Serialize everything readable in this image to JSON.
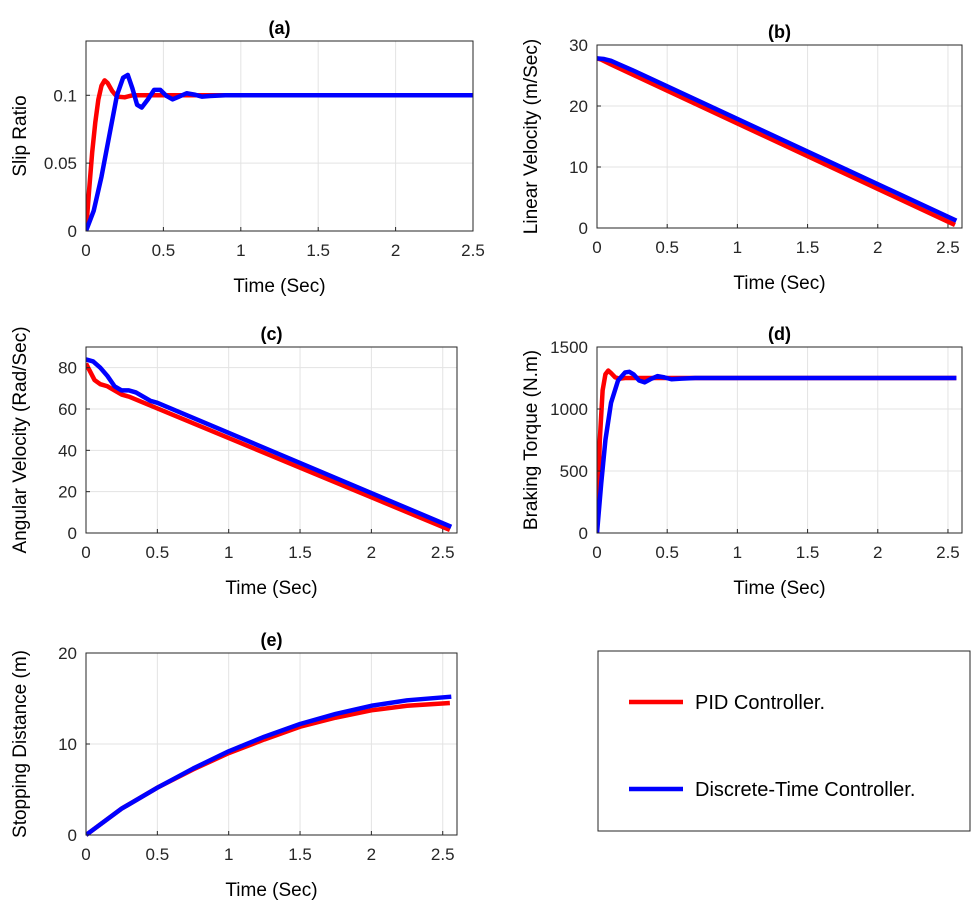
{
  "legend": {
    "entries": [
      {
        "label": "PID Controller.",
        "color": "#ff0000"
      },
      {
        "label": "Discrete-Time Controller.",
        "color": "#0000ff"
      }
    ]
  },
  "chart_data": [
    {
      "id": "a",
      "type": "line",
      "title": "(a)",
      "xlabel": "Time (Sec)",
      "ylabel": "Slip Ratio",
      "xlim": [
        0,
        2.5
      ],
      "ylim": [
        0,
        0.14
      ],
      "xticks": [
        0,
        0.5,
        1,
        1.5,
        2,
        2.5
      ],
      "xtick_labels": [
        "0",
        "0.5",
        "1",
        "1.5",
        "2",
        "2.5"
      ],
      "yticks": [
        0,
        0.05,
        0.1
      ],
      "ytick_labels": [
        "0",
        "0.05",
        "0.1"
      ],
      "grid": true,
      "series": [
        {
          "name": "PID Controller.",
          "color": "#ff0000",
          "x": [
            0,
            0.02,
            0.04,
            0.06,
            0.08,
            0.1,
            0.12,
            0.14,
            0.17,
            0.2,
            0.25,
            0.3,
            0.4,
            0.6,
            1,
            2.5
          ],
          "y": [
            0,
            0.03,
            0.058,
            0.08,
            0.097,
            0.107,
            0.111,
            0.109,
            0.103,
            0.099,
            0.0985,
            0.1,
            0.1,
            0.1,
            0.1,
            0.1
          ]
        },
        {
          "name": "Discrete-Time Controller.",
          "color": "#0000ff",
          "x": [
            0,
            0.05,
            0.1,
            0.15,
            0.2,
            0.24,
            0.27,
            0.3,
            0.33,
            0.36,
            0.4,
            0.44,
            0.48,
            0.52,
            0.56,
            0.6,
            0.65,
            0.7,
            0.75,
            0.8,
            0.9,
            1.0,
            2.5
          ],
          "y": [
            0,
            0.015,
            0.04,
            0.07,
            0.1,
            0.113,
            0.115,
            0.105,
            0.093,
            0.091,
            0.097,
            0.104,
            0.104,
            0.0995,
            0.097,
            0.099,
            0.1015,
            0.1005,
            0.099,
            0.0995,
            0.1,
            0.1,
            0.1
          ]
        }
      ]
    },
    {
      "id": "b",
      "type": "line",
      "title": "(b)",
      "xlabel": "Time (Sec)",
      "ylabel": "Linear Velocity (m/Sec)",
      "xlim": [
        0,
        2.6
      ],
      "ylim": [
        0,
        30
      ],
      "xticks": [
        0,
        0.5,
        1,
        1.5,
        2,
        2.5
      ],
      "xtick_labels": [
        "0",
        "0.5",
        "1",
        "1.5",
        "2",
        "2.5"
      ],
      "yticks": [
        0,
        10,
        20,
        30
      ],
      "ytick_labels": [
        "0",
        "10",
        "20",
        "30"
      ],
      "grid": true,
      "series": [
        {
          "name": "PID Controller.",
          "color": "#ff0000",
          "x": [
            0,
            0.03,
            0.1,
            2.55
          ],
          "y": [
            27.8,
            27.6,
            26.8,
            0.5
          ]
        },
        {
          "name": "Discrete-Time Controller.",
          "color": "#0000ff",
          "x": [
            0,
            0.05,
            0.1,
            0.15,
            0.25,
            2.56
          ],
          "y": [
            27.8,
            27.7,
            27.4,
            26.9,
            25.9,
            1.2
          ]
        }
      ]
    },
    {
      "id": "c",
      "type": "line",
      "title": "(c)",
      "xlabel": "Time (Sec)",
      "ylabel": "Angular Velocity (Rad/Sec)",
      "xlim": [
        0,
        2.6
      ],
      "ylim": [
        0,
        90
      ],
      "xticks": [
        0,
        0.5,
        1,
        1.5,
        2,
        2.5
      ],
      "xtick_labels": [
        "0",
        "0.5",
        "1",
        "1.5",
        "2",
        "2.5"
      ],
      "yticks": [
        0,
        20,
        40,
        60,
        80
      ],
      "ytick_labels": [
        "0",
        "20",
        "40",
        "60",
        "80"
      ],
      "grid": true,
      "series": [
        {
          "name": "PID Controller.",
          "color": "#ff0000",
          "x": [
            0,
            0.03,
            0.06,
            0.1,
            0.15,
            0.2,
            0.25,
            0.3,
            2.55
          ],
          "y": [
            82,
            78,
            74,
            72,
            71,
            69,
            67,
            66,
            1.5
          ]
        },
        {
          "name": "Discrete-Time Controller.",
          "color": "#0000ff",
          "x": [
            0,
            0.05,
            0.1,
            0.15,
            0.2,
            0.25,
            0.3,
            0.35,
            0.4,
            0.45,
            0.5,
            2.56
          ],
          "y": [
            84,
            83,
            80,
            76,
            71,
            69,
            69,
            68,
            66,
            64,
            63,
            3
          ]
        }
      ]
    },
    {
      "id": "d",
      "type": "line",
      "title": "(d)",
      "xlabel": "Time (Sec)",
      "ylabel": "Braking Torque (N.m)",
      "xlim": [
        0,
        2.6
      ],
      "ylim": [
        0,
        1500
      ],
      "xticks": [
        0,
        0.5,
        1,
        1.5,
        2,
        2.5
      ],
      "xtick_labels": [
        "0",
        "0.5",
        "1",
        "1.5",
        "2",
        "2.5"
      ],
      "yticks": [
        0,
        500,
        1000,
        1500
      ],
      "ytick_labels": [
        "0",
        "500",
        "1000",
        "1500"
      ],
      "grid": true,
      "series": [
        {
          "name": "PID Controller.",
          "color": "#ff0000",
          "x": [
            0,
            0.01,
            0.02,
            0.04,
            0.06,
            0.08,
            0.1,
            0.13,
            0.16,
            0.2,
            0.3,
            2.56
          ],
          "y": [
            0,
            350,
            750,
            1150,
            1280,
            1310,
            1290,
            1255,
            1245,
            1250,
            1250,
            1250
          ]
        },
        {
          "name": "Discrete-Time Controller.",
          "color": "#0000ff",
          "x": [
            0,
            0.03,
            0.06,
            0.1,
            0.15,
            0.2,
            0.23,
            0.26,
            0.3,
            0.34,
            0.38,
            0.43,
            0.48,
            0.53,
            0.6,
            0.7,
            2.56
          ],
          "y": [
            0,
            400,
            750,
            1050,
            1230,
            1295,
            1300,
            1280,
            1230,
            1215,
            1240,
            1265,
            1255,
            1240,
            1245,
            1250,
            1250
          ]
        }
      ]
    },
    {
      "id": "e",
      "type": "line",
      "title": "(e)",
      "xlabel": "Time (Sec)",
      "ylabel": "Stopping Distance (m)",
      "xlim": [
        0,
        2.6
      ],
      "ylim": [
        0,
        20
      ],
      "xticks": [
        0,
        0.5,
        1,
        1.5,
        2,
        2.5
      ],
      "xtick_labels": [
        "0",
        "0.5",
        "1",
        "1.5",
        "2",
        "2.5"
      ],
      "yticks": [
        0,
        10,
        20
      ],
      "ytick_labels": [
        "0",
        "10",
        "20"
      ],
      "grid": true,
      "series": [
        {
          "name": "PID Controller.",
          "color": "#ff0000",
          "x": [
            0,
            0.25,
            0.5,
            0.75,
            1.0,
            1.25,
            1.5,
            1.75,
            2.0,
            2.25,
            2.55
          ],
          "y": [
            0,
            2.9,
            5.2,
            7.2,
            9.0,
            10.5,
            11.9,
            12.9,
            13.7,
            14.2,
            14.5
          ]
        },
        {
          "name": "Discrete-Time Controller.",
          "color": "#0000ff",
          "x": [
            0,
            0.25,
            0.5,
            0.75,
            1.0,
            1.25,
            1.5,
            1.75,
            2.0,
            2.25,
            2.56
          ],
          "y": [
            0,
            2.9,
            5.2,
            7.3,
            9.2,
            10.8,
            12.2,
            13.3,
            14.2,
            14.8,
            15.2
          ]
        }
      ]
    }
  ]
}
